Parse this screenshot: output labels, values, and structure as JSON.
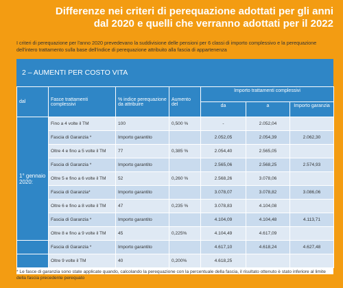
{
  "title": {
    "line1": "Differenze nei criteri di perequazione adottati per gli anni",
    "line2": "dal 2020 e quelli che verranno adottati per il 2022"
  },
  "intro": "I criteri di perequazione per l'anno 2020 prevedevano la suddivisione delle pensioni per 6 classi di importo complessivo e la perequazione dell'intero trattamento sulla base dell'indice di perequazione attribuito alla fascia di appartenenza",
  "section": "2 – AUMENTI PER COSTO VITA",
  "headers": {
    "dal": "dal",
    "fasce": "Fasce trattamenti complessivi",
    "indice": "% indice perequazione da attribuire",
    "aumento": "Aumento del",
    "importo": "Importo trattamenti complessivi",
    "da": "da",
    "a": "a",
    "garanzia": "Importo garanzia"
  },
  "date_label": "1° gennaio 2020:",
  "rows": [
    {
      "fascia": "Fino a 4 volte il TM",
      "indice": "100",
      "aumento": "0,500 %",
      "da": "-",
      "a": "2.052,04",
      "garanzia": ""
    },
    {
      "fascia": "Fascia di Garanzia *",
      "indice": "Importo garantito",
      "aumento": "",
      "da": "2.052,05",
      "a": "2.054,39",
      "garanzia": "2.062,30"
    },
    {
      "fascia": "Oltre 4 e fino a 5 volte il TM",
      "indice": "77",
      "aumento": "0,385 %",
      "da": "2.054,40",
      "a": "2.565,05",
      "garanzia": ""
    },
    {
      "fascia": "Fascia di Garanzia *",
      "indice": "Importo garantito",
      "aumento": "",
      "da": "2.565,06",
      "a": "2.568,25",
      "garanzia": "2.574,93"
    },
    {
      "fascia": "Oltre 5 e fino a 6 volte il TM",
      "indice": "52",
      "aumento": "0,260 %",
      "da": "2.568,26",
      "a": "3.078,06",
      "garanzia": ""
    },
    {
      "fascia": "Fascia di Garanzia*",
      "indice": "Importo garantito",
      "aumento": "",
      "da": "3.078,07",
      "a": "3.078,82",
      "garanzia": "3.086,06"
    },
    {
      "fascia": "Oltre 6 e fino a 8 volte il TM",
      "indice": "47",
      "aumento": "0,235 %",
      "da": "3.078,83",
      "a": "4.104,08",
      "garanzia": ""
    },
    {
      "fascia": "Fascia di Garanzia *",
      "indice": "Importo garantito",
      "aumento": "",
      "da": "4.104,09",
      "a": "4.104,48",
      "garanzia": "4.113,71"
    },
    {
      "fascia": "Oltre 8 e fino a 9 volte il TM",
      "indice": "45",
      "aumento": "0,225%",
      "da": "4.104,49",
      "a": "4.617,09",
      "garanzia": ""
    },
    {
      "fascia": "Fascia di Garanzia *",
      "indice": "Importo garantito",
      "aumento": "",
      "da": "4.617,10",
      "a": "4.618,24",
      "garanzia": "4.627,48"
    },
    {
      "fascia": "Oltre 9 volte il TM",
      "indice": "40",
      "aumento": "0,200%",
      "da": "4.618,25",
      "a": "",
      "garanzia": ""
    }
  ],
  "footnote": "* Le fasce di garanzia sono state applicate quando, calcolando la perequazione con la percentuale della fascia, il risultato ottenuto è stato inferiore al limite della fascia precedente perequato"
}
